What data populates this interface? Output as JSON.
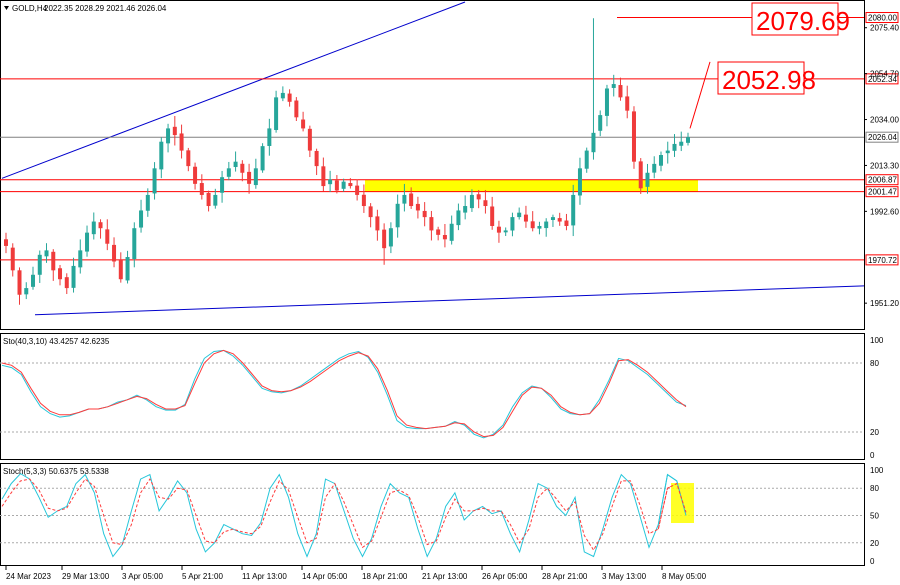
{
  "window": {
    "title": "GOLD,H4",
    "ohlc": "2022.35 2028.29 2021.46 2026.04",
    "collapse_icon": "triangle-down-icon"
  },
  "colors": {
    "bull": "#26a69a",
    "bear": "#ef3b3b",
    "level": "#ff0000",
    "trend": "#0000cc",
    "highlight": "#ffff00",
    "stoch_main": "#26c6da",
    "stoch_signal": "#ff3b3b",
    "price_marker": "#808080"
  },
  "chart_data": [
    {
      "type": "candlestick",
      "title": "GOLD,H4",
      "ohlc_header": "2022.35 2028.29 2021.46 2026.04",
      "ylim": [
        1940,
        2087
      ],
      "y_ticks": [
        "2075.40",
        "2054.70",
        "2034.00",
        "2013.30",
        "1992.60",
        "1951.20"
      ],
      "x_ticks": [
        "24 Mar 2023",
        "29 Mar 13:00",
        "3 Apr 05:00",
        "5 Apr 21:00",
        "11 Apr 13:00",
        "14 Apr 05:00",
        "18 Apr 21:00",
        "21 Apr 13:00",
        "26 Apr 05:00",
        "28 Apr 21:00",
        "3 May 13:00",
        "8 May 05:00"
      ],
      "close_path": [
        1977,
        1966,
        1955,
        1958,
        1964,
        1973,
        1975,
        1966,
        1962,
        1958,
        1968,
        1975,
        1983,
        1988,
        1985,
        1978,
        1970,
        1962,
        1972,
        1985,
        1993,
        2000,
        2012,
        2024,
        2030,
        2027,
        2020,
        2013,
        2005,
        2000,
        1995,
        2000,
        2008,
        2012,
        2015,
        2010,
        2005,
        2012,
        2022,
        2030,
        2044,
        2046,
        2042,
        2035,
        2030,
        2020,
        2013,
        2004,
        2007,
        2002,
        2006,
        2004,
        2000,
        1995,
        1990,
        1984,
        1976,
        1985,
        1996,
        2000,
        1995,
        1993,
        1990,
        1984,
        1982,
        1980,
        1987,
        1993,
        1995,
        2000,
        1998,
        1995,
        1986,
        1983,
        1984,
        1990,
        1992,
        1988,
        1985,
        1986,
        1988,
        1990,
        1988,
        1986,
        2000,
        2012,
        2020,
        2028,
        2036,
        2048,
        2050,
        2044,
        2038,
        2015,
        2003,
        2010,
        2014,
        2018,
        2020,
        2023,
        2024,
        2026.04
      ],
      "annotations": [
        {
          "text": "2079.69",
          "value": 2079.69
        },
        {
          "text": "2052.98",
          "value": 2052.98
        }
      ],
      "levels": [
        {
          "label": "2080.00",
          "value": 2080.0
        },
        {
          "label": "2052.34",
          "value": 2052.34
        },
        {
          "label": "2026.04",
          "value": 2026.04,
          "current": true
        },
        {
          "label": "2006.87",
          "value": 2006.87
        },
        {
          "label": "2001.47",
          "value": 2001.47
        },
        {
          "label": "1970.72",
          "value": 1970.72
        }
      ],
      "zone": {
        "from": 2001.47,
        "to": 2006.87
      }
    },
    {
      "type": "line",
      "title": "Sto(40,3,10) 43.4257 42.6235",
      "ylim": [
        0,
        100
      ],
      "y_ticks": [
        "100",
        "80",
        "20",
        "0"
      ],
      "series": [
        {
          "color": "#26c6da",
          "values": [
            78,
            76,
            70,
            55,
            42,
            36,
            33,
            34,
            37,
            40,
            40,
            42,
            46,
            48,
            52,
            48,
            42,
            39,
            39,
            44,
            66,
            84,
            90,
            91,
            86,
            78,
            68,
            58,
            55,
            54,
            56,
            60,
            66,
            72,
            78,
            84,
            88,
            90,
            85,
            72,
            52,
            30,
            24,
            23,
            23,
            24,
            25,
            29,
            26,
            18,
            15,
            18,
            26,
            42,
            54,
            60,
            58,
            50,
            40,
            36,
            35,
            36,
            48,
            65,
            84,
            82,
            76,
            70,
            62,
            54,
            46,
            43
          ]
        },
        {
          "color": "#ff3b3b",
          "values": [
            80,
            78,
            72,
            58,
            45,
            38,
            35,
            35,
            37,
            40,
            40,
            42,
            45,
            48,
            51,
            49,
            44,
            40,
            40,
            43,
            62,
            80,
            88,
            91,
            88,
            80,
            70,
            60,
            56,
            55,
            56,
            59,
            64,
            70,
            76,
            82,
            86,
            89,
            86,
            75,
            56,
            34,
            26,
            24,
            23,
            24,
            25,
            28,
            27,
            20,
            16,
            17,
            24,
            38,
            52,
            59,
            58,
            52,
            42,
            37,
            35,
            36,
            45,
            62,
            82,
            83,
            78,
            72,
            64,
            56,
            48,
            42
          ]
        }
      ]
    },
    {
      "type": "line",
      "title": "Stoch(5,3,3) 50.6375 53.5338",
      "ylim": [
        0,
        100
      ],
      "y_ticks": [
        "100",
        "80",
        "50",
        "20",
        "0"
      ],
      "series": [
        {
          "color": "#26c6da",
          "values": [
            68,
            85,
            96,
            90,
            70,
            48,
            55,
            60,
            85,
            95,
            75,
            30,
            5,
            18,
            55,
            90,
            95,
            55,
            70,
            88,
            75,
            35,
            10,
            20,
            40,
            35,
            30,
            28,
            42,
            80,
            95,
            70,
            30,
            5,
            30,
            90,
            85,
            55,
            25,
            5,
            25,
            60,
            85,
            75,
            70,
            35,
            5,
            25,
            60,
            75,
            45,
            55,
            60,
            52,
            55,
            30,
            10,
            45,
            85,
            80,
            60,
            50,
            70,
            10,
            5,
            35,
            70,
            95,
            85,
            50,
            15,
            40,
            95,
            88,
            50
          ]
        },
        {
          "color": "#ff3b3b",
          "values": [
            60,
            75,
            88,
            90,
            78,
            58,
            55,
            58,
            75,
            90,
            82,
            50,
            20,
            18,
            40,
            75,
            90,
            70,
            68,
            80,
            78,
            50,
            22,
            20,
            32,
            35,
            32,
            30,
            38,
            65,
            88,
            78,
            48,
            20,
            25,
            70,
            85,
            65,
            40,
            15,
            22,
            48,
            75,
            78,
            72,
            48,
            18,
            22,
            48,
            68,
            55,
            55,
            58,
            55,
            55,
            40,
            20,
            35,
            70,
            80,
            68,
            55,
            65,
            28,
            12,
            30,
            60,
            88,
            88,
            62,
            30,
            35,
            80,
            85,
            53.5
          ]
        }
      ],
      "box_label": ""
    }
  ]
}
